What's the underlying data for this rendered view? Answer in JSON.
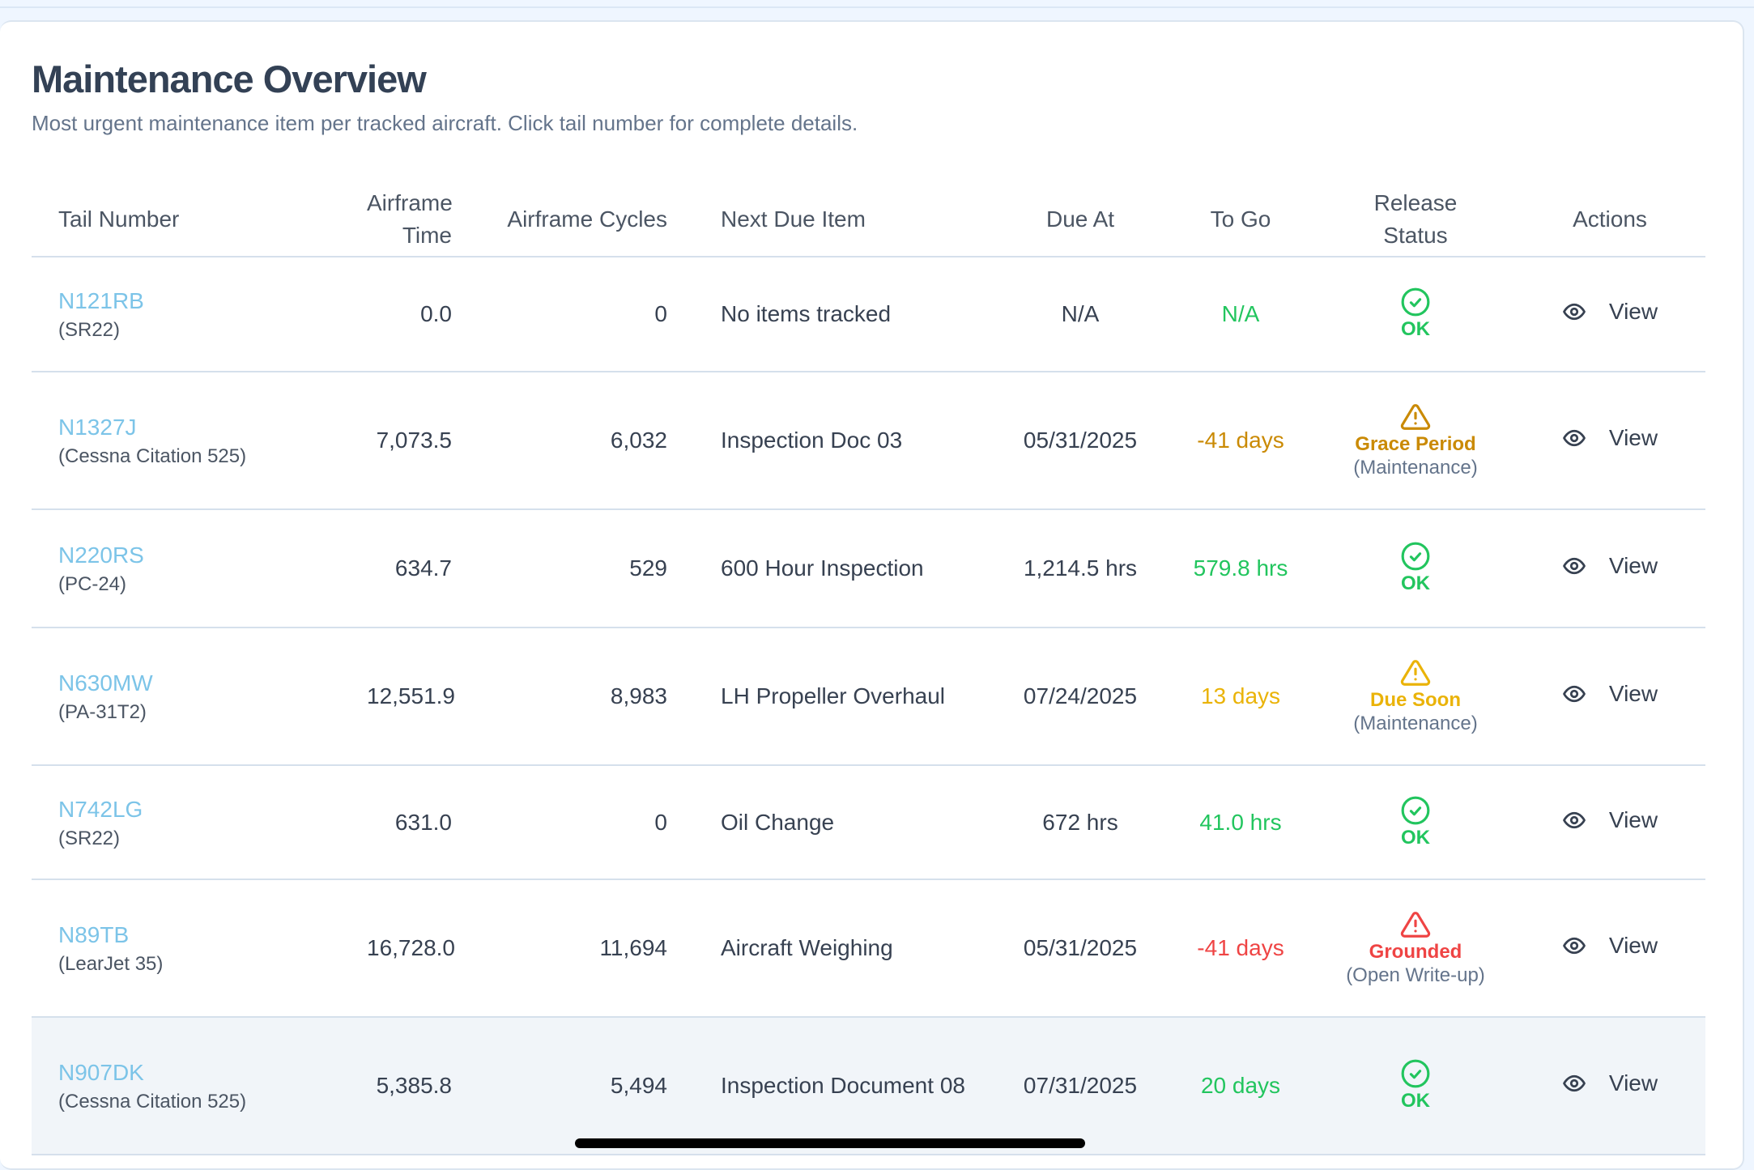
{
  "header": {
    "title": "Maintenance Overview",
    "subtitle": "Most urgent maintenance item per tracked aircraft. Click tail number for complete details."
  },
  "columns": [
    "Tail Number",
    "Airframe Time",
    "Airframe Cycles",
    "Next Due Item",
    "Due At",
    "To Go",
    "Release Status",
    "Actions"
  ],
  "colors": {
    "ok": "#22c55e",
    "grace": "#ca8a04",
    "due_soon": "#eab308",
    "grounded": "#ef4444",
    "link": "#7cc4e8"
  },
  "rows": [
    {
      "tail": "N121RB",
      "model": "(SR22)",
      "airframe_time": "0.0",
      "cycles": "0",
      "next_due": "No items tracked",
      "due_at": "N/A",
      "to_go": "N/A",
      "to_go_color": "ok",
      "status": "OK",
      "status_sub": "",
      "status_type": "ok",
      "action": "View"
    },
    {
      "tail": "N1327J",
      "model": "(Cessna Citation 525)",
      "airframe_time": "7,073.5",
      "cycles": "6,032",
      "next_due": "Inspection Doc 03",
      "due_at": "05/31/2025",
      "to_go": "-41 days",
      "to_go_color": "grace",
      "status": "Grace Period",
      "status_sub": "(Maintenance)",
      "status_type": "grace",
      "action": "View"
    },
    {
      "tail": "N220RS",
      "model": "(PC-24)",
      "airframe_time": "634.7",
      "cycles": "529",
      "next_due": "600 Hour Inspection",
      "due_at": "1,214.5 hrs",
      "to_go": "579.8 hrs",
      "to_go_color": "ok",
      "status": "OK",
      "status_sub": "",
      "status_type": "ok",
      "action": "View"
    },
    {
      "tail": "N630MW",
      "model": "(PA-31T2)",
      "airframe_time": "12,551.9",
      "cycles": "8,983",
      "next_due": "LH Propeller Overhaul",
      "due_at": "07/24/2025",
      "to_go": "13 days",
      "to_go_color": "due_soon",
      "status": "Due Soon",
      "status_sub": "(Maintenance)",
      "status_type": "due_soon",
      "action": "View"
    },
    {
      "tail": "N742LG",
      "model": "(SR22)",
      "airframe_time": "631.0",
      "cycles": "0",
      "next_due": "Oil Change",
      "due_at": "672 hrs",
      "to_go": "41.0 hrs",
      "to_go_color": "ok",
      "status": "OK",
      "status_sub": "",
      "status_type": "ok",
      "action": "View"
    },
    {
      "tail": "N89TB",
      "model": "(LearJet 35)",
      "airframe_time": "16,728.0",
      "cycles": "11,694",
      "next_due": "Aircraft Weighing",
      "due_at": "05/31/2025",
      "to_go": "-41 days",
      "to_go_color": "grounded",
      "status": "Grounded",
      "status_sub": "(Open Write-up)",
      "status_type": "grounded",
      "action": "View"
    },
    {
      "tail": "N907DK",
      "model": "(Cessna Citation 525)",
      "airframe_time": "5,385.8",
      "cycles": "5,494",
      "next_due": "Inspection Document 08",
      "due_at": "07/31/2025",
      "to_go": "20 days",
      "to_go_color": "ok",
      "status": "OK",
      "status_sub": "",
      "status_type": "ok",
      "action": "View"
    }
  ]
}
